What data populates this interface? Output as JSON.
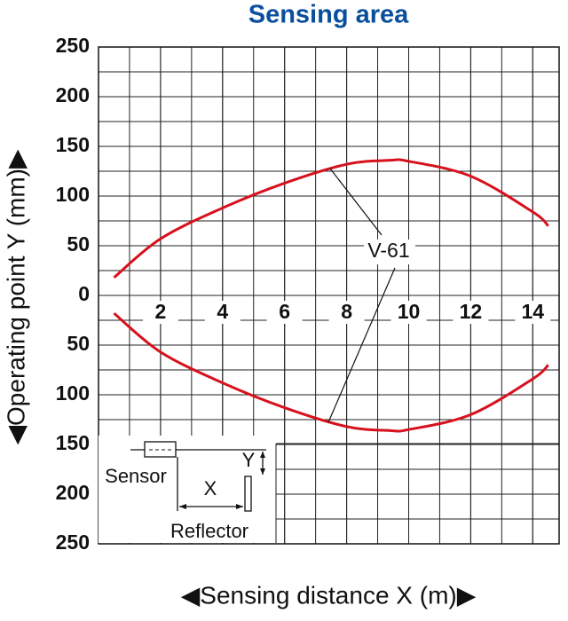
{
  "chart_data": {
    "type": "line",
    "title": "Sensing area",
    "x_label": "◀Sensing distance X (m)▶",
    "y_label": "◀Operating point Y (mm)▶",
    "x": [
      0.5,
      2,
      4,
      6,
      8,
      9.4,
      10,
      12,
      14,
      14.5
    ],
    "series": [
      {
        "color": "#d7111d",
        "values": [
          18,
          57,
          88,
          113,
          132,
          136,
          135,
          120,
          84,
          70
        ]
      },
      {
        "color": "#d7111d",
        "values": [
          -18,
          -57,
          -88,
          -113,
          -132,
          -136,
          -135,
          -120,
          -84,
          -70
        ]
      }
    ],
    "annotation": "V-61",
    "xlim": [
      0,
      14.85
    ],
    "ylim": [
      -250,
      250
    ],
    "xticks": [
      2,
      4,
      6,
      8,
      10,
      12,
      14
    ],
    "yticks": [
      250,
      200,
      150,
      100,
      50,
      0,
      {
        "value": -50,
        "label": "50"
      },
      {
        "value": -100,
        "label": "100"
      },
      {
        "value": -150,
        "label": "150"
      },
      {
        "value": -200,
        "label": "200"
      },
      {
        "value": -250,
        "label": "250"
      }
    ],
    "grid": true,
    "minor_grid": {
      "x": 1,
      "y": 25
    },
    "diagram": {
      "sensor": "Sensor",
      "x": "X",
      "y": "Y",
      "reflector": "Reflector"
    }
  }
}
